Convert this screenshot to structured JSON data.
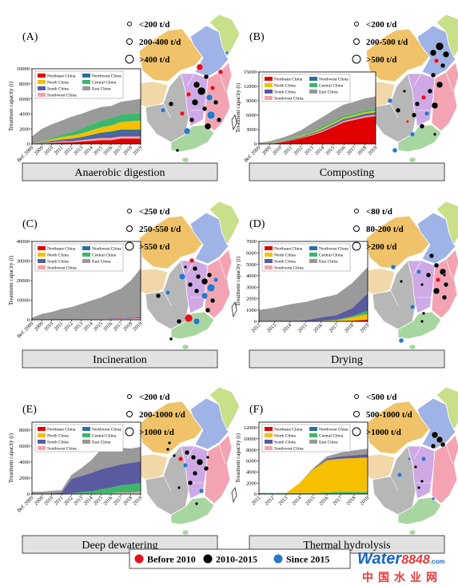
{
  "region_colors": {
    "Northeast China": "#e00000",
    "North China": "#f6c000",
    "South China": "#5a5aa0",
    "Southwest China": "#f4a3a8",
    "Northwest China": "#2c6fa0",
    "Central China": "#3db86a",
    "East China": "#9a9a9a"
  },
  "map_colors": {
    "northwest": "#f0c36a",
    "north": "#9fb3e6",
    "northeast": "#c8e08a",
    "east": "#f4a3b3",
    "central": "#cfa8e6",
    "southwest": "#b7b7b7",
    "south": "#a8d6a0",
    "tibet": "#f2d8a8"
  },
  "legend_period": [
    {
      "label": "Before 2010",
      "color": "#e8101c"
    },
    {
      "label": "2010-2015",
      "color": "#000000"
    },
    {
      "label": "Since 2015",
      "color": "#2878c8"
    }
  ],
  "watermark": {
    "brand": "Water",
    "number": "8848",
    "domain": ".com",
    "cn": "中国水业网"
  },
  "chart_data": [
    {
      "type": "area",
      "stacked": true,
      "panel": "(A)",
      "caption": "Anaerobic digestion",
      "ylabel": "Treatment capacity (t)",
      "x": [
        "Bef. 2009",
        "2009",
        "2010",
        "2011",
        "2012",
        "2013",
        "2014",
        "2015",
        "2016",
        "2017",
        "2018",
        "2019"
      ],
      "ylim": [
        0,
        10000
      ],
      "yticks": [
        0,
        2000,
        4000,
        6000,
        8000,
        10000
      ],
      "legend": [
        "Northeast China",
        "Northwest China",
        "North China",
        "Central China",
        "South China",
        "East China",
        "Southwest China"
      ],
      "series": [
        {
          "name": "Northeast China",
          "values": [
            0,
            50,
            100,
            200,
            200,
            300,
            400,
            500,
            500,
            700,
            700,
            700
          ]
        },
        {
          "name": "Southwest China",
          "values": [
            0,
            50,
            100,
            150,
            150,
            200,
            250,
            300,
            300,
            300,
            300,
            300
          ]
        },
        {
          "name": "South China",
          "values": [
            0,
            100,
            150,
            150,
            200,
            200,
            300,
            400,
            500,
            500,
            500,
            500
          ]
        },
        {
          "name": "Northwest China",
          "values": [
            0,
            0,
            50,
            100,
            150,
            200,
            250,
            300,
            350,
            400,
            400,
            400
          ]
        },
        {
          "name": "North China",
          "values": [
            0,
            100,
            200,
            300,
            400,
            500,
            600,
            700,
            800,
            1000,
            1100,
            1200
          ]
        },
        {
          "name": "Central China",
          "values": [
            0,
            100,
            200,
            300,
            500,
            600,
            800,
            900,
            1000,
            1000,
            1000,
            1000
          ]
        },
        {
          "name": "East China",
          "values": [
            1000,
            1600,
            1800,
            1900,
            2000,
            2000,
            1900,
            1800,
            1600,
            1700,
            1800,
            1900
          ]
        }
      ],
      "sizes": [
        {
          "label": "<200 t/d",
          "r": 2.5
        },
        {
          "label": "200-400 t/d",
          "r": 3.5
        },
        {
          "label": ">400 t/d",
          "r": 5
        }
      ]
    },
    {
      "type": "area",
      "stacked": true,
      "panel": "(B)",
      "caption": "Composting",
      "ylabel": "Treatment capacity (t)",
      "x": [
        "Bef. 2009",
        "2009",
        "2010",
        "2011",
        "2012",
        "2013",
        "2014",
        "2015",
        "2016",
        "2017",
        "2018",
        "2019"
      ],
      "ylim": [
        0,
        15000
      ],
      "yticks": [
        0,
        3000,
        6000,
        9000,
        12000,
        15000
      ],
      "legend": [
        "Northeast China",
        "Northwest China",
        "North China",
        "Central China",
        "South China",
        "East China",
        "Southwest China"
      ],
      "series": [
        {
          "name": "Northeast China",
          "values": [
            0,
            0,
            300,
            700,
            1200,
            1800,
            2500,
            3500,
            4500,
            5000,
            5500,
            5800
          ]
        },
        {
          "name": "Southwest China",
          "values": [
            0,
            50,
            50,
            100,
            100,
            150,
            200,
            200,
            300,
            300,
            300,
            300
          ]
        },
        {
          "name": "South China",
          "values": [
            0,
            50,
            50,
            100,
            100,
            150,
            200,
            200,
            200,
            200,
            200,
            200
          ]
        },
        {
          "name": "Northwest China",
          "values": [
            0,
            50,
            50,
            100,
            100,
            100,
            100,
            200,
            200,
            200,
            300,
            300
          ]
        },
        {
          "name": "North China",
          "values": [
            0,
            50,
            100,
            100,
            200,
            200,
            300,
            300,
            300,
            300,
            300,
            300
          ]
        },
        {
          "name": "Central China",
          "values": [
            0,
            50,
            100,
            100,
            200,
            300,
            300,
            400,
            400,
            400,
            400,
            400
          ]
        },
        {
          "name": "East China",
          "values": [
            200,
            300,
            500,
            700,
            1000,
            1600,
            2000,
            2200,
            2300,
            2400,
            2500,
            2600
          ]
        }
      ],
      "sizes": [
        {
          "label": "<200 t/d",
          "r": 2.5
        },
        {
          "label": "200-500 t/d",
          "r": 3.5
        },
        {
          "label": ">500 t/d",
          "r": 5
        }
      ]
    },
    {
      "type": "area",
      "stacked": true,
      "panel": "(C)",
      "caption": "Incineration",
      "ylabel": "Treatment capacity (t)",
      "x": [
        "Bef. 2009",
        "2009",
        "2010",
        "2011",
        "2012",
        "2013",
        "2014",
        "2015",
        "2016",
        "2017",
        "2018",
        "2019"
      ],
      "ylim": [
        0,
        40000
      ],
      "yticks": [
        0,
        10000,
        20000,
        30000,
        40000
      ],
      "legend": [
        "Northeast China",
        "Northwest China",
        "North China",
        "Central China",
        "South China",
        "East China",
        "Southwest China"
      ],
      "series": [
        {
          "name": "Southwest China",
          "values": [
            0,
            0,
            0,
            0,
            0,
            100,
            200,
            300,
            400,
            500,
            600,
            800
          ]
        },
        {
          "name": "South China",
          "values": [
            0,
            0,
            0,
            0,
            0,
            0,
            100,
            100,
            200,
            200,
            300,
            300
          ]
        },
        {
          "name": "Northeast China",
          "values": [
            0,
            0,
            0,
            0,
            0,
            0,
            0,
            0,
            100,
            100,
            100,
            200
          ]
        },
        {
          "name": "East China",
          "values": [
            1000,
            3000,
            4000,
            5500,
            6500,
            8000,
            9500,
            11000,
            13000,
            15000,
            19000,
            25000
          ]
        }
      ],
      "sizes": [
        {
          "label": "<250 t/d",
          "r": 2.5
        },
        {
          "label": "250-550 t/d",
          "r": 3.5
        },
        {
          "label": ">550 t/d",
          "r": 5
        }
      ]
    },
    {
      "type": "area",
      "stacked": true,
      "panel": "(D)",
      "caption": "Drying",
      "ylabel": "Treatment capacity (t)",
      "x": [
        "2012",
        "2013",
        "2014",
        "2015",
        "2016",
        "2017",
        "2018",
        "2019"
      ],
      "ylim": [
        0,
        7000
      ],
      "yticks": [
        0,
        1000,
        2000,
        3000,
        4000,
        5000,
        6000,
        7000
      ],
      "legend": [
        "Northeast China",
        "Northwest China",
        "North China",
        "Central China",
        "South China",
        "East China",
        "Southwest China"
      ],
      "series": [
        {
          "name": "Northeast China",
          "values": [
            0,
            0,
            0,
            0,
            0,
            0,
            50,
            150
          ]
        },
        {
          "name": "North China",
          "values": [
            0,
            0,
            0,
            0,
            50,
            100,
            300,
            500
          ]
        },
        {
          "name": "Central China",
          "values": [
            0,
            0,
            0,
            0,
            0,
            50,
            100,
            300
          ]
        },
        {
          "name": "South China",
          "values": [
            0,
            0,
            0,
            100,
            300,
            400,
            700,
            1500
          ]
        },
        {
          "name": "East China",
          "values": [
            1000,
            1200,
            1500,
            1600,
            1700,
            1800,
            2200,
            2300
          ]
        }
      ],
      "sizes": [
        {
          "label": "<80 t/d",
          "r": 2.5
        },
        {
          "label": "80-200 t/d",
          "r": 3.5
        },
        {
          "label": ">200 t/d",
          "r": 5
        }
      ]
    },
    {
      "type": "area",
      "stacked": true,
      "panel": "(E)",
      "caption": "Deep dewatering",
      "ylabel": "Treatment capacity (t)",
      "x": [
        "Bef. 2009",
        "2009",
        "2010",
        "2011",
        "2012",
        "2013",
        "2014",
        "2015",
        "2016",
        "2017",
        "2018",
        "2019"
      ],
      "ylim": [
        0,
        9000
      ],
      "yticks": [
        0,
        2000,
        4000,
        6000,
        8000
      ],
      "legend": [
        "Northeast China",
        "Northwest China",
        "North China",
        "Central China",
        "South China",
        "East China",
        "Southwest China"
      ],
      "series": [
        {
          "name": "Southwest China",
          "values": [
            0,
            0,
            0,
            0,
            0,
            50,
            50,
            100,
            100,
            200,
            200,
            300
          ]
        },
        {
          "name": "Central China",
          "values": [
            0,
            0,
            0,
            0,
            100,
            200,
            300,
            500,
            700,
            900,
            1000,
            1100
          ]
        },
        {
          "name": "South China",
          "values": [
            0,
            0,
            100,
            200,
            1800,
            2000,
            2300,
            2500,
            2600,
            2600,
            2700,
            2700
          ]
        },
        {
          "name": "East China",
          "values": [
            300,
            300,
            300,
            300,
            500,
            1000,
            1600,
            2500,
            2300,
            2100,
            1800,
            1800
          ]
        }
      ],
      "sizes": [
        {
          "label": "<200 t/d",
          "r": 2.5
        },
        {
          "label": "200-1000 t/d",
          "r": 3.5
        },
        {
          "label": ">1000 t/d",
          "r": 5
        }
      ]
    },
    {
      "type": "area",
      "stacked": true,
      "panel": "(F)",
      "caption": "Thermal hydrolysis",
      "ylabel": "Treatment capacity (t)",
      "x": [
        "2011",
        "2012",
        "2013",
        "2014",
        "2015",
        "2016",
        "2017",
        "2018",
        "2019"
      ],
      "ylim": [
        0,
        13000
      ],
      "yticks": [
        0,
        2000,
        4000,
        6000,
        8000,
        10000,
        12000
      ],
      "legend": [
        "Northeast China",
        "Northwest China",
        "North China",
        "Central China",
        "South China",
        "East China",
        "Southwest China"
      ],
      "series": [
        {
          "name": "Central China",
          "values": [
            200,
            200,
            200,
            200,
            200,
            300,
            400,
            400,
            400
          ]
        },
        {
          "name": "North China",
          "values": [
            0,
            0,
            0,
            1800,
            4300,
            5800,
            6000,
            6100,
            6200
          ]
        },
        {
          "name": "South China",
          "values": [
            0,
            0,
            0,
            0,
            100,
            300,
            400,
            500,
            600
          ]
        },
        {
          "name": "East China",
          "values": [
            0,
            0,
            0,
            0,
            100,
            400,
            700,
            900,
            1000
          ]
        }
      ],
      "sizes": [
        {
          "label": "<500 t/d",
          "r": 2.5
        },
        {
          "label": "500-1000 t/d",
          "r": 3.5
        },
        {
          "label": ">1000 t/d",
          "r": 5
        }
      ]
    }
  ]
}
